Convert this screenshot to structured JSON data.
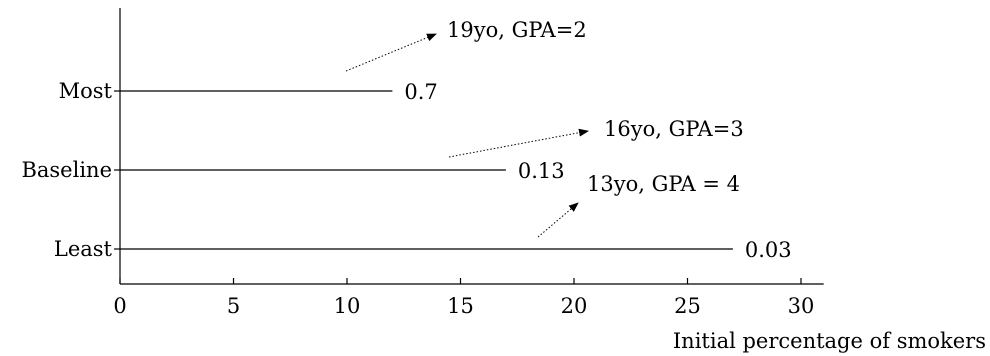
{
  "chart_data": {
    "type": "bar",
    "orientation": "horizontal",
    "title": "",
    "xlabel": "Initial percentage of smokers",
    "ylabel": "",
    "xlim": [
      0,
      31
    ],
    "x_ticks": [
      0,
      5,
      10,
      15,
      20,
      25,
      30
    ],
    "x_tick_labels": [
      "0",
      "5",
      "10",
      "15",
      "20",
      "25",
      "30"
    ],
    "grid": false,
    "legend": "none",
    "categories": [
      "Most",
      "Baseline",
      "Least"
    ],
    "values": [
      12,
      17,
      27
    ],
    "value_labels": [
      "0.7",
      "0.13",
      "0.03"
    ],
    "annotations": [
      {
        "text": "19yo, GPA=2",
        "category": "Most"
      },
      {
        "text": "16yo, GPA=3",
        "category": "Baseline"
      },
      {
        "text": "13yo, GPA = 4",
        "category": "Least"
      }
    ]
  }
}
